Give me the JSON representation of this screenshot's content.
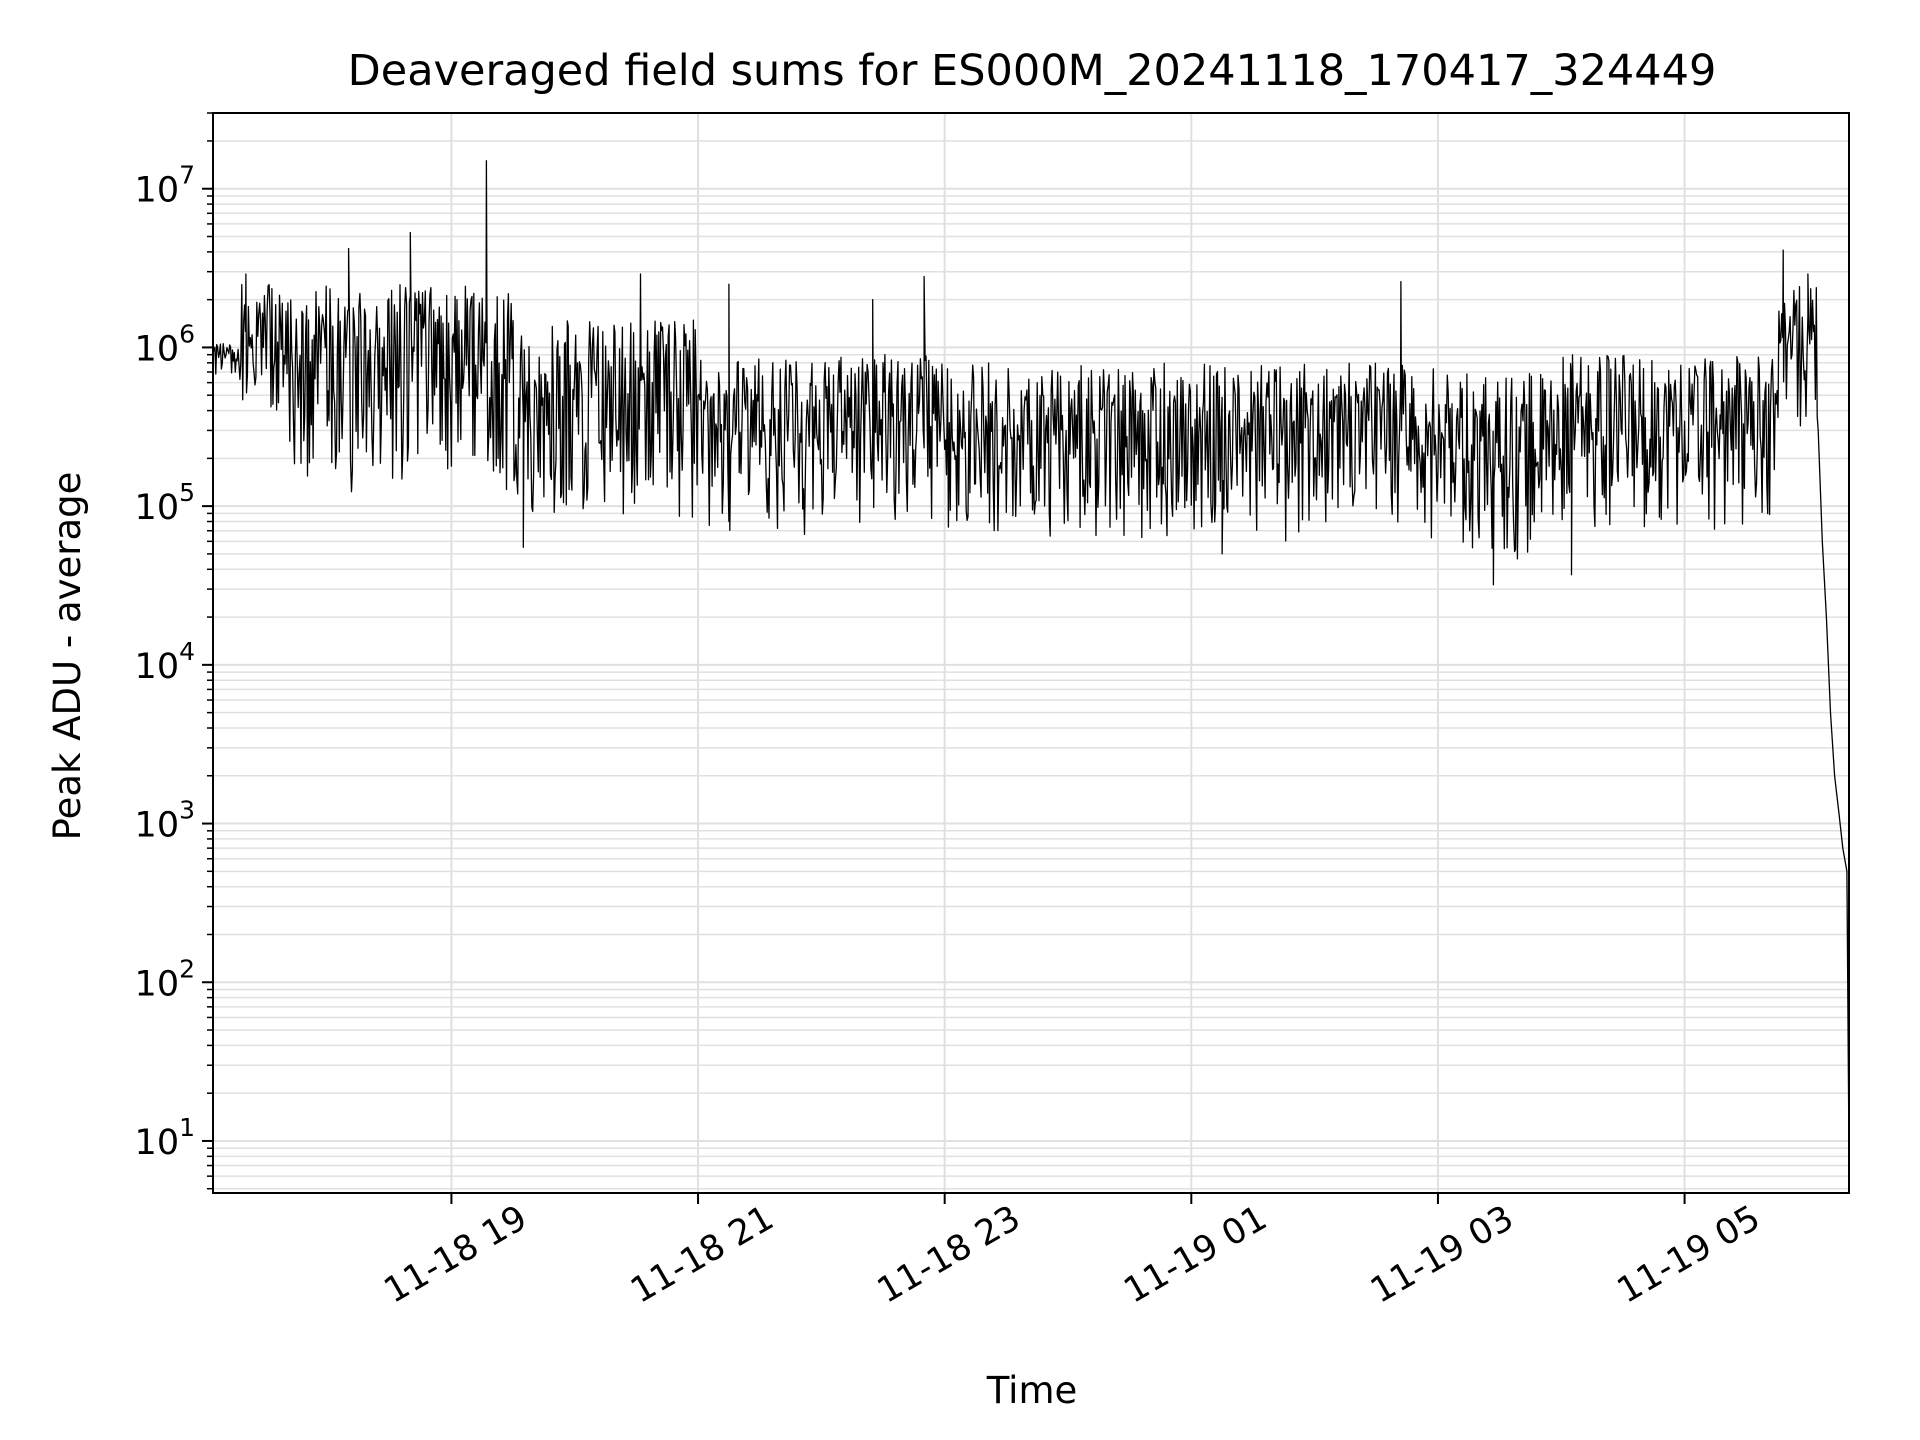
{
  "chart_data": {
    "type": "line",
    "title": "Deaveraged field sums for ES000M_20241118_170417_324449",
    "xlabel": "Time",
    "ylabel": "Peak ADU - average",
    "y_scale": "log",
    "ylim": [
      4.7,
      30000000
    ],
    "xlim": [
      "2024-11-18 17:04",
      "2024-11-19 06:20"
    ],
    "x_ticks": [
      {
        "label": "11-18 19",
        "time": "2024-11-18 19:00"
      },
      {
        "label": "11-18 21",
        "time": "2024-11-18 21:00"
      },
      {
        "label": "11-18 23",
        "time": "2024-11-18 23:00"
      },
      {
        "label": "11-19 01",
        "time": "2024-11-19 01:00"
      },
      {
        "label": "11-19 03",
        "time": "2024-11-19 03:00"
      },
      {
        "label": "11-19 05",
        "time": "2024-11-19 05:00"
      }
    ],
    "y_ticks": [
      {
        "base": "10",
        "exp": "1",
        "value": 10
      },
      {
        "base": "10",
        "exp": "2",
        "value": 100
      },
      {
        "base": "10",
        "exp": "3",
        "value": 1000
      },
      {
        "base": "10",
        "exp": "4",
        "value": 10000
      },
      {
        "base": "10",
        "exp": "5",
        "value": 100000
      },
      {
        "base": "10",
        "exp": "6",
        "value": 1000000
      },
      {
        "base": "10",
        "exp": "7",
        "value": 10000000
      }
    ],
    "grid": true,
    "line_color": "#000000",
    "grid_color": "#e0e0e0",
    "series": [
      {
        "segments": [
          {
            "start": "2024-11-18 17:04",
            "end": "2024-11-18 17:18",
            "low": 600000,
            "high": 1100000
          },
          {
            "start": "2024-11-18 17:18",
            "end": "2024-11-18 17:40",
            "low": 300000,
            "high": 2500000
          },
          {
            "start": "2024-11-18 17:40",
            "end": "2024-11-18 19:30",
            "low": 120000,
            "high": 2500000
          },
          {
            "start": "2024-11-18 19:30",
            "end": "2024-11-18 21:00",
            "low": 80000,
            "high": 1500000
          },
          {
            "start": "2024-11-18 21:00",
            "end": "2024-11-18 23:15",
            "low": 65000,
            "high": 900000
          },
          {
            "start": "2024-11-18 23:15",
            "end": "2024-11-19 03:00",
            "low": 60000,
            "high": 800000
          },
          {
            "start": "2024-11-19 03:00",
            "end": "2024-11-19 04:00",
            "low": 45000,
            "high": 700000
          },
          {
            "start": "2024-11-19 04:00",
            "end": "2024-11-19 05:45",
            "low": 70000,
            "high": 900000
          },
          {
            "start": "2024-11-19 05:45",
            "end": "2024-11-19 06:05",
            "low": 300000,
            "high": 2500000
          }
        ],
        "spikes": [
          {
            "time": "2024-11-18 17:20",
            "value": 2900000
          },
          {
            "time": "2024-11-18 18:10",
            "value": 4200000
          },
          {
            "time": "2024-11-18 18:40",
            "value": 5300000
          },
          {
            "time": "2024-11-18 19:17",
            "value": 15000000
          },
          {
            "time": "2024-11-18 19:35",
            "value": 55000
          },
          {
            "time": "2024-11-18 20:32",
            "value": 2900000
          },
          {
            "time": "2024-11-18 21:15",
            "value": 2500000
          },
          {
            "time": "2024-11-18 22:25",
            "value": 2000000
          },
          {
            "time": "2024-11-18 22:50",
            "value": 2800000
          },
          {
            "time": "2024-11-19 01:15",
            "value": 50000
          },
          {
            "time": "2024-11-19 02:42",
            "value": 2600000
          },
          {
            "time": "2024-11-19 03:27",
            "value": 32000
          },
          {
            "time": "2024-11-19 04:05",
            "value": 37000
          },
          {
            "time": "2024-11-19 05:48",
            "value": 4100000
          },
          {
            "time": "2024-11-19 06:00",
            "value": 2900000
          }
        ],
        "tail": [
          {
            "time": "2024-11-19 06:05",
            "value": 300000
          },
          {
            "time": "2024-11-19 06:07",
            "value": 60000
          },
          {
            "time": "2024-11-19 06:09",
            "value": 20000
          },
          {
            "time": "2024-11-19 06:11",
            "value": 5000
          },
          {
            "time": "2024-11-19 06:13",
            "value": 2000
          },
          {
            "time": "2024-11-19 06:15",
            "value": 1200
          },
          {
            "time": "2024-11-19 06:17",
            "value": 700
          },
          {
            "time": "2024-11-19 06:19",
            "value": 500
          },
          {
            "time": "2024-11-19 06:20",
            "value": 8
          }
        ]
      }
    ]
  }
}
